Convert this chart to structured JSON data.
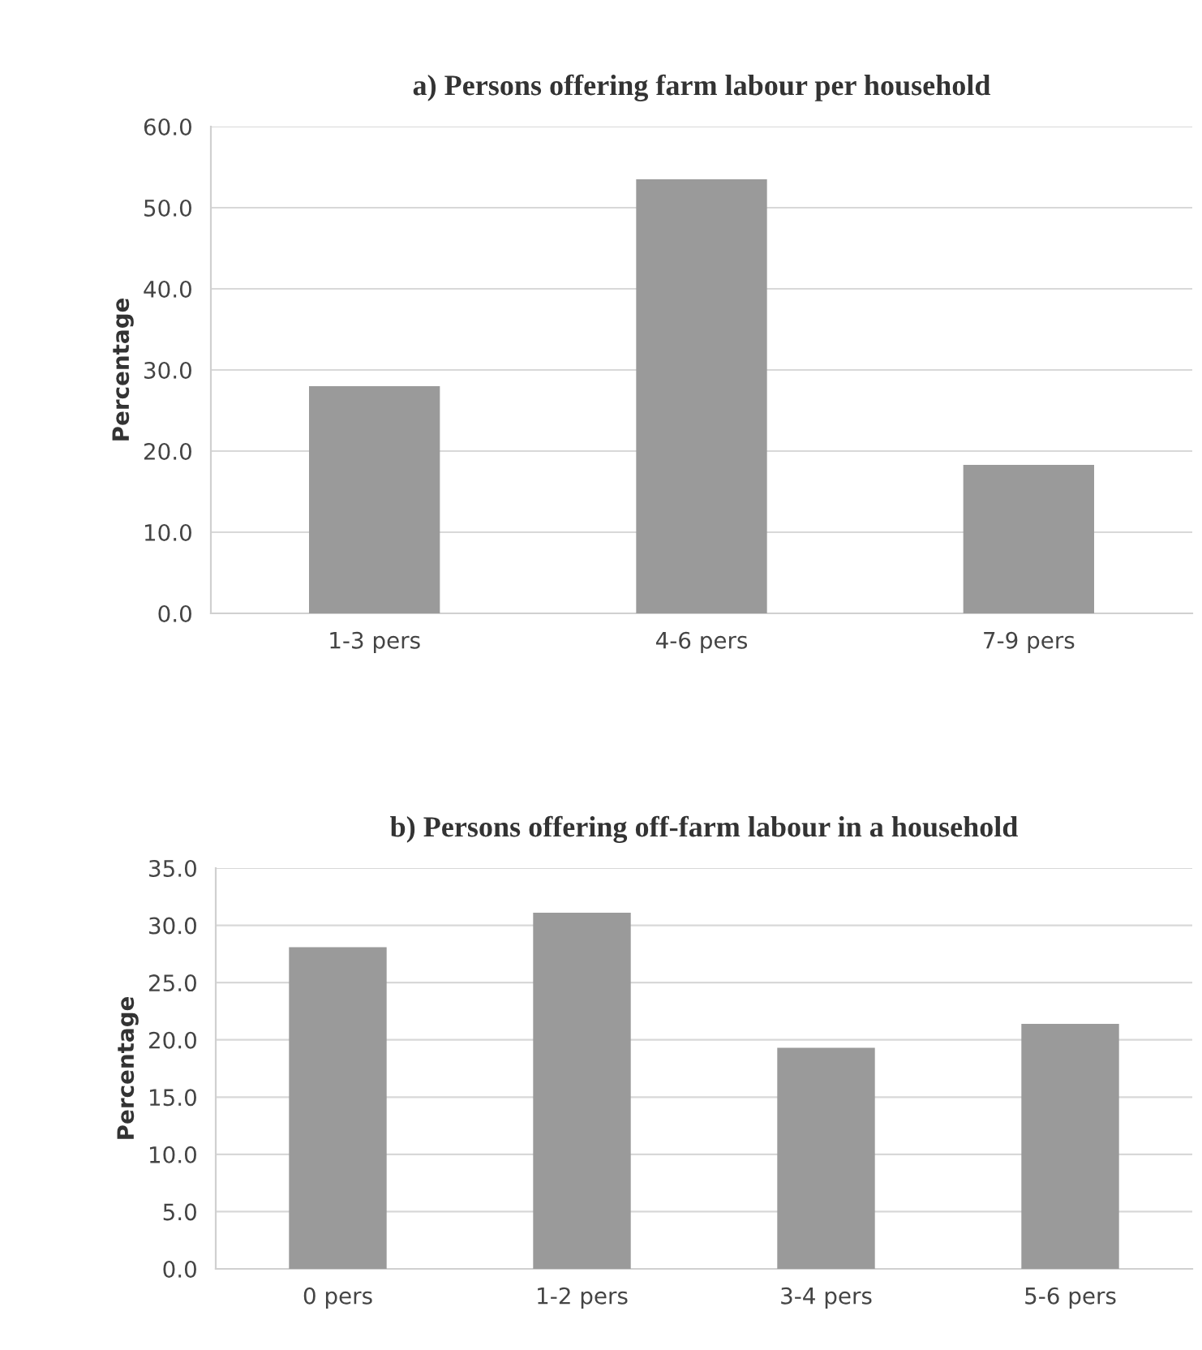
{
  "chart_data": [
    {
      "type": "bar",
      "title": "a) Persons offering farm labour per household",
      "ylabel": "Percentage",
      "categories": [
        "1-3 pers",
        "4-6 pers",
        "7-9 pers"
      ],
      "values": [
        28.0,
        53.5,
        18.3
      ],
      "color": "#9a9a9a",
      "ylim": [
        0,
        60
      ],
      "yticks": [
        {
          "value": 0,
          "label": "0.0"
        },
        {
          "value": 10,
          "label": "10.0"
        },
        {
          "value": 20,
          "label": "20.0"
        },
        {
          "value": 30,
          "label": "30.0"
        },
        {
          "value": 40,
          "label": "40.0"
        },
        {
          "value": 50,
          "label": "50.0"
        },
        {
          "value": 60,
          "label": "60.0"
        }
      ],
      "grid": "y"
    },
    {
      "type": "bar",
      "title": "b) Persons offering off-farm labour in a household",
      "ylabel": "Percentage",
      "categories": [
        "0 pers",
        "1-2 pers",
        "3-4 pers",
        "5-6 pers"
      ],
      "values": [
        28.1,
        31.1,
        19.3,
        21.4
      ],
      "color": "#9a9a9a",
      "ylim": [
        0,
        35
      ],
      "yticks": [
        {
          "value": 0,
          "label": "0.0"
        },
        {
          "value": 5,
          "label": "5.0"
        },
        {
          "value": 10,
          "label": "10.0"
        },
        {
          "value": 15,
          "label": "15.0"
        },
        {
          "value": 20,
          "label": "20.0"
        },
        {
          "value": 25,
          "label": "25.0"
        },
        {
          "value": 30,
          "label": "30.0"
        },
        {
          "value": 35,
          "label": "35.0"
        }
      ],
      "grid": "y"
    }
  ]
}
